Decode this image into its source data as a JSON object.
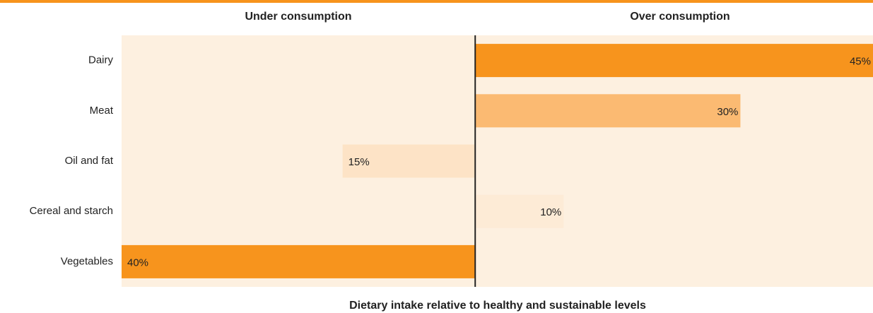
{
  "chart_data": {
    "type": "diverging-bar",
    "title": "Dietary intake relative to healthy and sustainable levels",
    "categories": [
      "Dairy",
      "Meat",
      "Oil and fat",
      "Cereal and starch",
      "Vegetables"
    ],
    "series": [
      {
        "name": "Under consumption",
        "values": [
          null,
          null,
          15,
          null,
          40
        ],
        "value_labels": [
          null,
          null,
          "15%",
          null,
          "40%"
        ],
        "colors": [
          null,
          null,
          "#fde3c6",
          null,
          "#f7941d"
        ],
        "xlim": [
          0,
          40
        ]
      },
      {
        "name": "Over consumption",
        "values": [
          45,
          30,
          null,
          10,
          null
        ],
        "value_labels": [
          "45%",
          "30%",
          null,
          "10%",
          null
        ],
        "colors": [
          "#f7941d",
          "#fbba72",
          null,
          "#fdebd6",
          null
        ],
        "xlim": [
          0,
          45
        ]
      }
    ],
    "background": "#fdf0e0",
    "accent": "#f7941d"
  }
}
